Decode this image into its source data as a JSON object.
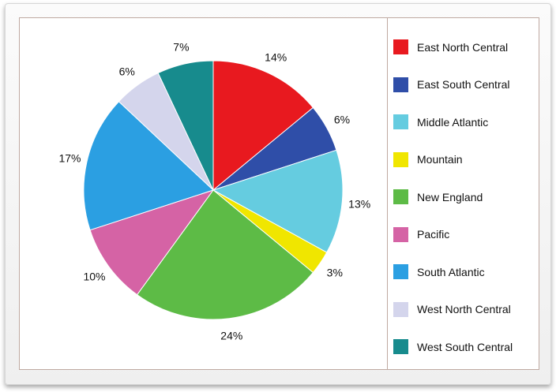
{
  "chart_data": {
    "type": "pie",
    "title": "",
    "labels": [
      "East North Central",
      "East South Central",
      "Middle Atlantic",
      "Mountain",
      "New England",
      "Pacific",
      "South Atlantic",
      "West North Central",
      "West South Central"
    ],
    "values": [
      14,
      6,
      13,
      3,
      24,
      10,
      17,
      6,
      7
    ],
    "value_labels": [
      "14%",
      "6%",
      "13%",
      "3%",
      "24%",
      "10%",
      "17%",
      "6%",
      "7%"
    ],
    "colors": [
      "#e8191f",
      "#2f4ea8",
      "#65cce0",
      "#f0e600",
      "#5dbb46",
      "#d563a5",
      "#2b9fe2",
      "#d4d5ec",
      "#178b8d"
    ],
    "start": "12 o'clock",
    "direction": "clockwise",
    "legend_position": "right"
  }
}
